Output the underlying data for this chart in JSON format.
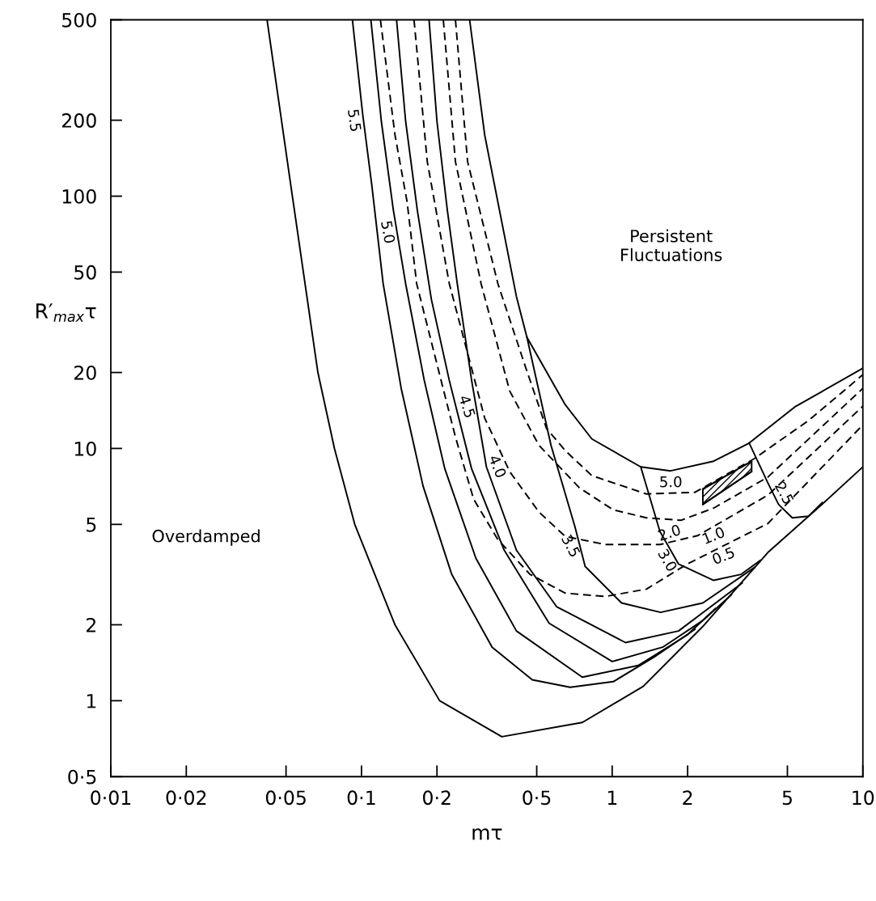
{
  "chart_data": {
    "type": "line",
    "xlabel": "mτ",
    "ylabel": "R′$_{max}$τ",
    "log": "xy",
    "grid": false,
    "legend": false,
    "xlim": [
      0.01,
      10
    ],
    "ylim": [
      0.5,
      500
    ],
    "xticks": [
      {
        "value": 0.01,
        "label": "0·01"
      },
      {
        "value": 0.02,
        "label": "0·02"
      },
      {
        "value": 0.05,
        "label": "0·05"
      },
      {
        "value": 0.1,
        "label": "0·1"
      },
      {
        "value": 0.2,
        "label": "0·2"
      },
      {
        "value": 0.5,
        "label": "0·5"
      },
      1,
      2,
      5,
      10
    ],
    "yticks": [
      {
        "value": 0.5,
        "label": "0·5"
      },
      1,
      2,
      5,
      10,
      20,
      50,
      100,
      200,
      500
    ],
    "series": [
      {
        "line_style": "solid",
        "color": "#000000",
        "x": [
          0.042,
          0.053,
          0.067,
          0.078,
          0.094,
          0.136,
          0.205,
          0.363,
          0.76,
          1.33,
          2.3,
          4.18,
          6.89,
          10
        ],
        "values": [
          500,
          100,
          20,
          10,
          5,
          2,
          1,
          0.72,
          0.82,
          1.14,
          1.97,
          3.87,
          6.02,
          8.45
        ]
      },
      {
        "line_style": "solid",
        "color": "#000000",
        "x": [
          0.27,
          0.31,
          0.415,
          0.457,
          0.65,
          0.83,
          1.3,
          1.71,
          2.54,
          3.52,
          5.35,
          10
        ],
        "values": [
          500,
          175,
          40,
          27.6,
          14.9,
          10.9,
          8.45,
          8.15,
          8.9,
          10.5,
          14.6,
          20.8
        ]
      },
      {
        "name": "5.5",
        "line_style": "solid",
        "color": "#000000",
        "x": [
          0.092,
          0.101,
          0.11,
          0.122,
          0.144,
          0.176,
          0.229,
          0.332,
          0.48,
          0.68,
          1.01,
          1.47,
          2.14
        ],
        "values": [
          500,
          213,
          110,
          45,
          17.3,
          7.1,
          3.17,
          1.63,
          1.21,
          1.13,
          1.19,
          1.49,
          1.92
        ]
      },
      {
        "name": "5.0",
        "line_style": "solid",
        "color": "#000000",
        "x": [
          0.109,
          0.12,
          0.134,
          0.15,
          0.178,
          0.215,
          0.286,
          0.415,
          0.76,
          1.27,
          1.99,
          2.58
        ],
        "values": [
          500,
          198,
          88,
          45,
          18.6,
          8.3,
          3.67,
          1.89,
          1.24,
          1.38,
          1.82,
          2.32
        ]
      },
      {
        "name": "4.5",
        "line_style": "solid",
        "color": "#000000",
        "x": [
          0.138,
          0.15,
          0.167,
          0.19,
          0.224,
          0.275,
          0.371,
          0.56,
          1.0,
          1.59,
          2.3,
          2.99
        ],
        "values": [
          500,
          198,
          88,
          39,
          18.6,
          8.3,
          3.95,
          2.03,
          1.43,
          1.63,
          2.08,
          2.63
        ]
      },
      {
        "name": "4.0",
        "line_style": "solid",
        "color": "#000000",
        "x": [
          0.186,
          0.2,
          0.22,
          0.241,
          0.275,
          0.315,
          0.415,
          0.6,
          1.13,
          1.84,
          3.3
        ],
        "values": [
          500,
          198,
          88,
          45,
          18.6,
          8.45,
          3.95,
          2.36,
          1.7,
          1.89,
          2.93
        ]
      },
      {
        "name": "3.5",
        "line_style": "solid",
        "color": "#000000",
        "x": [
          0.457,
          0.57,
          0.71,
          0.78,
          1.09,
          1.56,
          2.3,
          3.7
        ],
        "values": [
          27.6,
          10.3,
          4.9,
          3.41,
          2.44,
          2.24,
          2.44,
          3.38
        ]
      },
      {
        "name": "3.0",
        "line_style": "solid",
        "color": "#000000",
        "x": [
          1.3,
          1.55,
          1.84,
          2.54,
          3.27,
          3.9
        ],
        "values": [
          8.45,
          4.69,
          3.48,
          3.0,
          3.17,
          3.6
        ]
      },
      {
        "name": "2.5",
        "line_style": "solid",
        "color": "#000000",
        "x": [
          3.52,
          4.18,
          4.61,
          5.23,
          6.07,
          6.89
        ],
        "values": [
          10.5,
          7.3,
          6.0,
          5.31,
          5.39,
          6.1
        ]
      },
      {
        "name": "0.5",
        "line_style": "dashed",
        "color": "#000000",
        "x": [
          0.119,
          0.136,
          0.152,
          0.166,
          0.2,
          0.237,
          0.28,
          0.35,
          0.47,
          0.65,
          0.94,
          1.37,
          1.99,
          4.18,
          10
        ],
        "values": [
          500,
          175,
          95,
          45,
          21.6,
          11.1,
          6.3,
          4.35,
          3.17,
          2.67,
          2.59,
          2.77,
          3.48,
          5.04,
          12.4
        ]
      },
      {
        "name": "1.0",
        "line_style": "dashed",
        "color": "#000000",
        "x": [
          0.162,
          0.183,
          0.224,
          0.31,
          0.39,
          0.51,
          0.65,
          0.94,
          1.55,
          2.19,
          4.18,
          10
        ],
        "values": [
          500,
          137,
          45,
          13.2,
          8.1,
          5.6,
          4.48,
          4.16,
          4.16,
          4.51,
          6.53,
          14.7
        ]
      },
      {
        "name": "2.0",
        "line_style": "dashed",
        "color": "#000000",
        "x": [
          0.212,
          0.237,
          0.3,
          0.39,
          0.51,
          0.74,
          1.01,
          1.37,
          1.88,
          2.54,
          4.18,
          10
        ],
        "values": [
          500,
          137,
          45,
          16.9,
          10.3,
          6.98,
          5.71,
          5.31,
          5.19,
          5.8,
          7.7,
          17.3
        ]
      },
      {
        "name": "5.0",
        "line_style": "dashed",
        "color": "#000000",
        "x": [
          0.237,
          0.265,
          0.35,
          0.447,
          0.547,
          0.65,
          0.83,
          1.37,
          2.14,
          3.68,
          6.07,
          10
        ],
        "values": [
          500,
          137,
          45,
          21.6,
          12.0,
          9.8,
          7.8,
          6.6,
          6.7,
          9.1,
          12.9,
          19.6
        ]
      },
      {
        "type": "line",
        "line_style": "solid",
        "color": "#000000",
        "x": [
          2.3,
          3.6
        ],
        "values": [
          6.9,
          8.9
        ]
      },
      {
        "type": "line",
        "line_style": "solid",
        "color": "#000000",
        "x": [
          2.3,
          3.6
        ],
        "values": [
          6.0,
          8.1
        ]
      }
    ],
    "annotations": [
      "Persistent\nFluctuations",
      "Overdamped"
    ]
  }
}
